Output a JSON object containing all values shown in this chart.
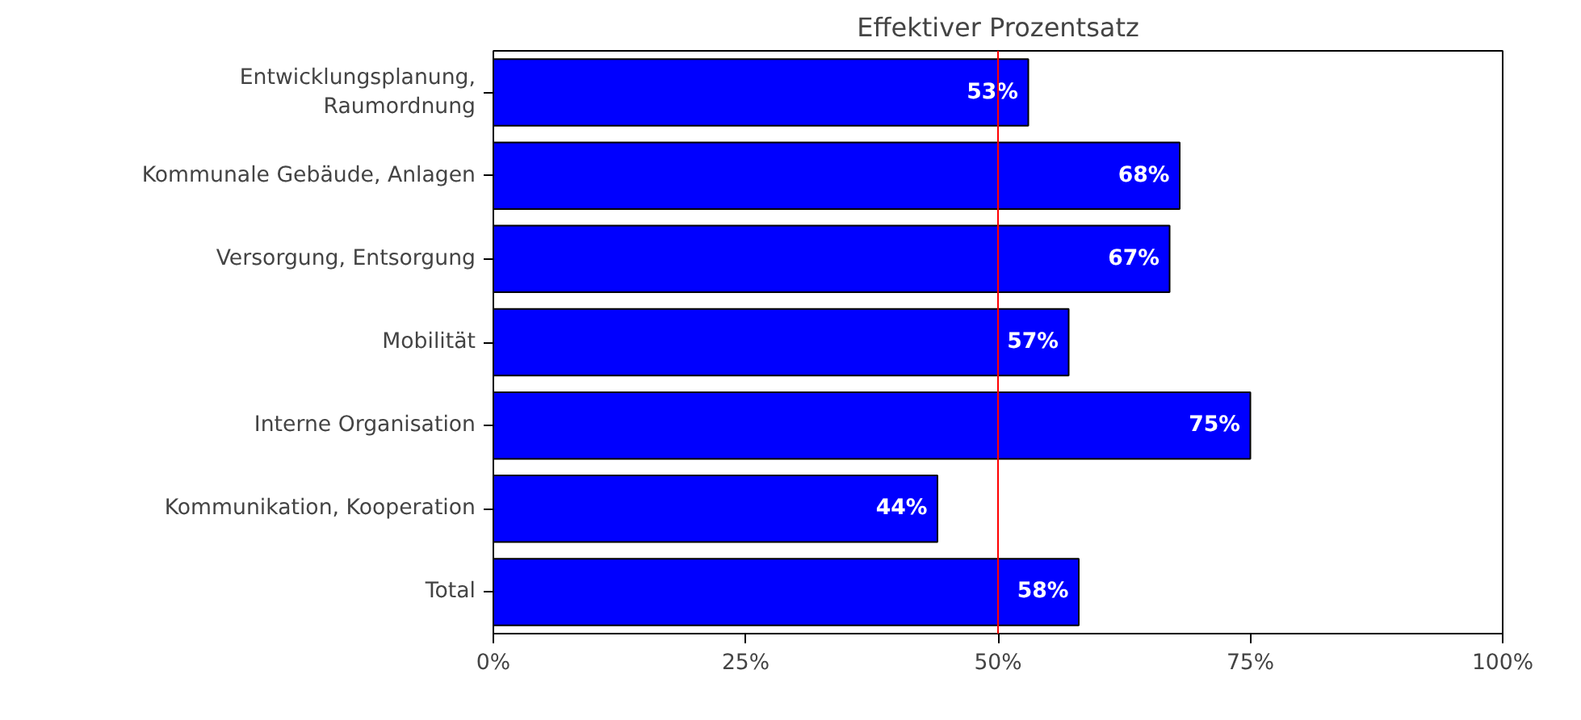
{
  "chart_data": {
    "type": "bar",
    "orientation": "horizontal",
    "title": "Effektiver Prozentsatz",
    "categories": [
      "Entwicklungsplanung, Raumordnung",
      "Kommunale Gebäude, Anlagen",
      "Versorgung, Entsorgung",
      "Mobilität",
      "Interne Organisation",
      "Kommunikation, Kooperation",
      "Total"
    ],
    "values": [
      53,
      68,
      67,
      57,
      75,
      44,
      58
    ],
    "value_labels": [
      "53%",
      "68%",
      "67%",
      "57%",
      "75%",
      "44%",
      "58%"
    ],
    "color": "#0000ff",
    "xlim": [
      0,
      100
    ],
    "xticks": [
      {
        "value": 0,
        "label": "0%"
      },
      {
        "value": 25,
        "label": "25%"
      },
      {
        "value": 50,
        "label": "50%"
      },
      {
        "value": 75,
        "label": "75%"
      },
      {
        "value": 100,
        "label": "100%"
      }
    ],
    "ref_lines": [
      {
        "axis": "x",
        "value": 50,
        "label": null,
        "color": "#ff0000"
      }
    ],
    "grid": false
  }
}
